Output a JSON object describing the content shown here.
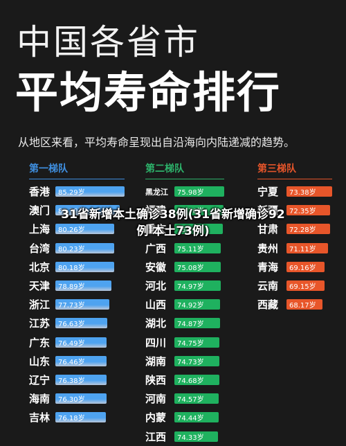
{
  "title_line1": "中国各省市",
  "title_line2": "平均寿命排行",
  "subtitle": "从地区来看，平均寿命呈现出自沿海向内陆递减的趋势。",
  "overlay_caption": "31省新增本土确诊38例(31省新增确诊92例 本土73例)",
  "colors": {
    "tier1_header": "#3f8fe0",
    "tier1_bar_top": "#4ea3f0",
    "tier1_bar_bottom": "#b9c7da",
    "tier2_header": "#2db36b",
    "tier2_bar": "#1fb15f",
    "tier3_header": "#e6552a",
    "tier3_bar": "#e8562a"
  },
  "tiers": [
    {
      "header": "第一梯队",
      "rows": [
        {
          "name": "香港",
          "value": "85.29岁",
          "num": 85.29
        },
        {
          "name": "澳门",
          "value": "82.79岁",
          "num": 82.79
        },
        {
          "name": "上海",
          "value": "80.26岁",
          "num": 80.26
        },
        {
          "name": "台湾",
          "value": "80.23岁",
          "num": 80.23
        },
        {
          "name": "北京",
          "value": "80.18岁",
          "num": 80.18
        },
        {
          "name": "天津",
          "value": "78.89岁",
          "num": 78.89
        },
        {
          "name": "浙江",
          "value": "77.73岁",
          "num": 77.73
        },
        {
          "name": "江苏",
          "value": "76.63岁",
          "num": 76.63
        },
        {
          "name": "广东",
          "value": "76.49岁",
          "num": 76.49
        },
        {
          "name": "山东",
          "value": "76.46岁",
          "num": 76.46
        },
        {
          "name": "辽宁",
          "value": "76.38岁",
          "num": 76.38
        },
        {
          "name": "海南",
          "value": "76.30岁",
          "num": 76.3
        },
        {
          "name": "吉林",
          "value": "76.18岁",
          "num": 76.18
        }
      ]
    },
    {
      "header": "第二梯队",
      "rows": [
        {
          "name": "黑龙江",
          "value": "75.98岁",
          "num": 75.98
        },
        {
          "name": "福建",
          "value": "75.76岁",
          "num": 75.76
        },
        {
          "name": "重庆",
          "value": "75.70岁",
          "num": 75.7
        },
        {
          "name": "广西",
          "value": "75.11岁",
          "num": 75.11
        },
        {
          "name": "安徽",
          "value": "75.08岁",
          "num": 75.08
        },
        {
          "name": "河北",
          "value": "74.97岁",
          "num": 74.97
        },
        {
          "name": "山西",
          "value": "74.92岁",
          "num": 74.92
        },
        {
          "name": "湖北",
          "value": "74.87岁",
          "num": 74.87
        },
        {
          "name": "四川",
          "value": "74.75岁",
          "num": 74.75
        },
        {
          "name": "湖南",
          "value": "74.73岁",
          "num": 74.73
        },
        {
          "name": "陕西",
          "value": "74.68岁",
          "num": 74.68
        },
        {
          "name": "河南",
          "value": "74.57岁",
          "num": 74.57
        },
        {
          "name": "内蒙",
          "value": "74.44岁",
          "num": 74.44
        },
        {
          "name": "江西",
          "value": "74.33岁",
          "num": 74.33
        }
      ]
    },
    {
      "header": "第三梯队",
      "rows": [
        {
          "name": "宁夏",
          "value": "73.38岁",
          "num": 73.38
        },
        {
          "name": "新疆",
          "value": "72.35岁",
          "num": 72.35
        },
        {
          "name": "甘肃",
          "value": "72.28岁",
          "num": 72.28
        },
        {
          "name": "贵州",
          "value": "71.11岁",
          "num": 71.11
        },
        {
          "name": "青海",
          "value": "69.16岁",
          "num": 69.16
        },
        {
          "name": "云南",
          "value": "69.15岁",
          "num": 69.15
        },
        {
          "name": "西藏",
          "value": "68.17岁",
          "num": 68.17
        }
      ]
    }
  ]
}
